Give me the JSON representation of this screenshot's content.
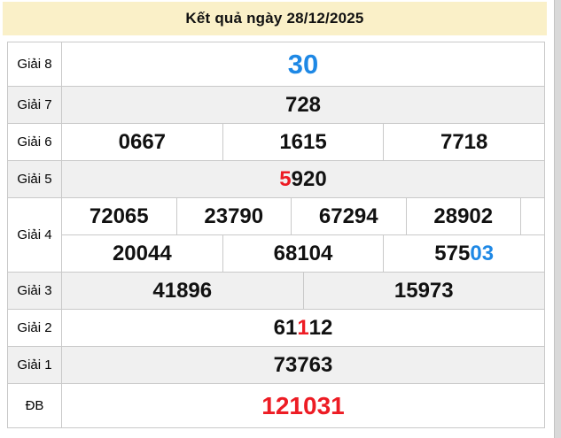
{
  "header": {
    "title": "Kết quả ngày 28/12/2025"
  },
  "colors": {
    "header_bg": "#FAF0C8",
    "row_shaded_bg": "#F0F0F0",
    "row_bg": "#FFFFFF",
    "border": "#C9C9C9",
    "number_black": "#111111",
    "number_red": "#ED1C24",
    "number_blue": "#1E88E5",
    "scrollbar": "#D9D9D9"
  },
  "results": {
    "rows": [
      {
        "key": "giai-8",
        "label": "Giải 8",
        "shaded": false,
        "size": "xl",
        "lines": [
          {
            "cells": [
              {
                "segments": [
                  {
                    "text": "30",
                    "color": "blue"
                  }
                ]
              }
            ]
          }
        ]
      },
      {
        "key": "giai-7",
        "label": "Giải 7",
        "shaded": true,
        "size": "md",
        "lines": [
          {
            "cells": [
              {
                "segments": [
                  {
                    "text": "728",
                    "color": "black"
                  }
                ]
              }
            ]
          }
        ]
      },
      {
        "key": "giai-6",
        "label": "Giải 6",
        "shaded": false,
        "size": "md",
        "lines": [
          {
            "cells": [
              {
                "segments": [
                  {
                    "text": "0667",
                    "color": "black"
                  }
                ]
              },
              {
                "segments": [
                  {
                    "text": "1615",
                    "color": "black"
                  }
                ]
              },
              {
                "segments": [
                  {
                    "text": "7718",
                    "color": "black"
                  }
                ]
              }
            ]
          }
        ]
      },
      {
        "key": "giai-5",
        "label": "Giải 5",
        "shaded": true,
        "size": "md",
        "lines": [
          {
            "cells": [
              {
                "segments": [
                  {
                    "text": "5",
                    "color": "red"
                  },
                  {
                    "text": "920",
                    "color": "black"
                  }
                ]
              }
            ]
          }
        ]
      },
      {
        "key": "giai-4",
        "label": "Giải 4",
        "shaded": false,
        "size": "md",
        "lines": [
          {
            "trailing_gap": true,
            "cells": [
              {
                "segments": [
                  {
                    "text": "72065",
                    "color": "black"
                  }
                ]
              },
              {
                "segments": [
                  {
                    "text": "23790",
                    "color": "black"
                  }
                ]
              },
              {
                "segments": [
                  {
                    "text": "67294",
                    "color": "black"
                  }
                ]
              },
              {
                "segments": [
                  {
                    "text": "28902",
                    "color": "black"
                  }
                ]
              }
            ]
          },
          {
            "cells": [
              {
                "segments": [
                  {
                    "text": "20044",
                    "color": "black"
                  }
                ]
              },
              {
                "segments": [
                  {
                    "text": "68104",
                    "color": "black"
                  }
                ]
              },
              {
                "segments": [
                  {
                    "text": "575",
                    "color": "black"
                  },
                  {
                    "text": "03",
                    "color": "blue"
                  }
                ]
              }
            ]
          }
        ]
      },
      {
        "key": "giai-3",
        "label": "Giải 3",
        "shaded": true,
        "size": "md",
        "lines": [
          {
            "cells": [
              {
                "segments": [
                  {
                    "text": "41896",
                    "color": "black"
                  }
                ]
              },
              {
                "segments": [
                  {
                    "text": "15973",
                    "color": "black"
                  }
                ]
              }
            ]
          }
        ]
      },
      {
        "key": "giai-2",
        "label": "Giải 2",
        "shaded": false,
        "size": "md",
        "lines": [
          {
            "cells": [
              {
                "segments": [
                  {
                    "text": "61",
                    "color": "black"
                  },
                  {
                    "text": "1",
                    "color": "red"
                  },
                  {
                    "text": "12",
                    "color": "black"
                  }
                ]
              }
            ]
          }
        ]
      },
      {
        "key": "giai-1",
        "label": "Giải 1",
        "shaded": true,
        "size": "md",
        "lines": [
          {
            "cells": [
              {
                "segments": [
                  {
                    "text": "73763",
                    "color": "black"
                  }
                ]
              }
            ]
          }
        ]
      },
      {
        "key": "db",
        "label": "ĐB",
        "shaded": false,
        "size": "lg",
        "lines": [
          {
            "cells": [
              {
                "segments": [
                  {
                    "text": "121031",
                    "color": "red"
                  }
                ]
              }
            ]
          }
        ]
      }
    ]
  }
}
